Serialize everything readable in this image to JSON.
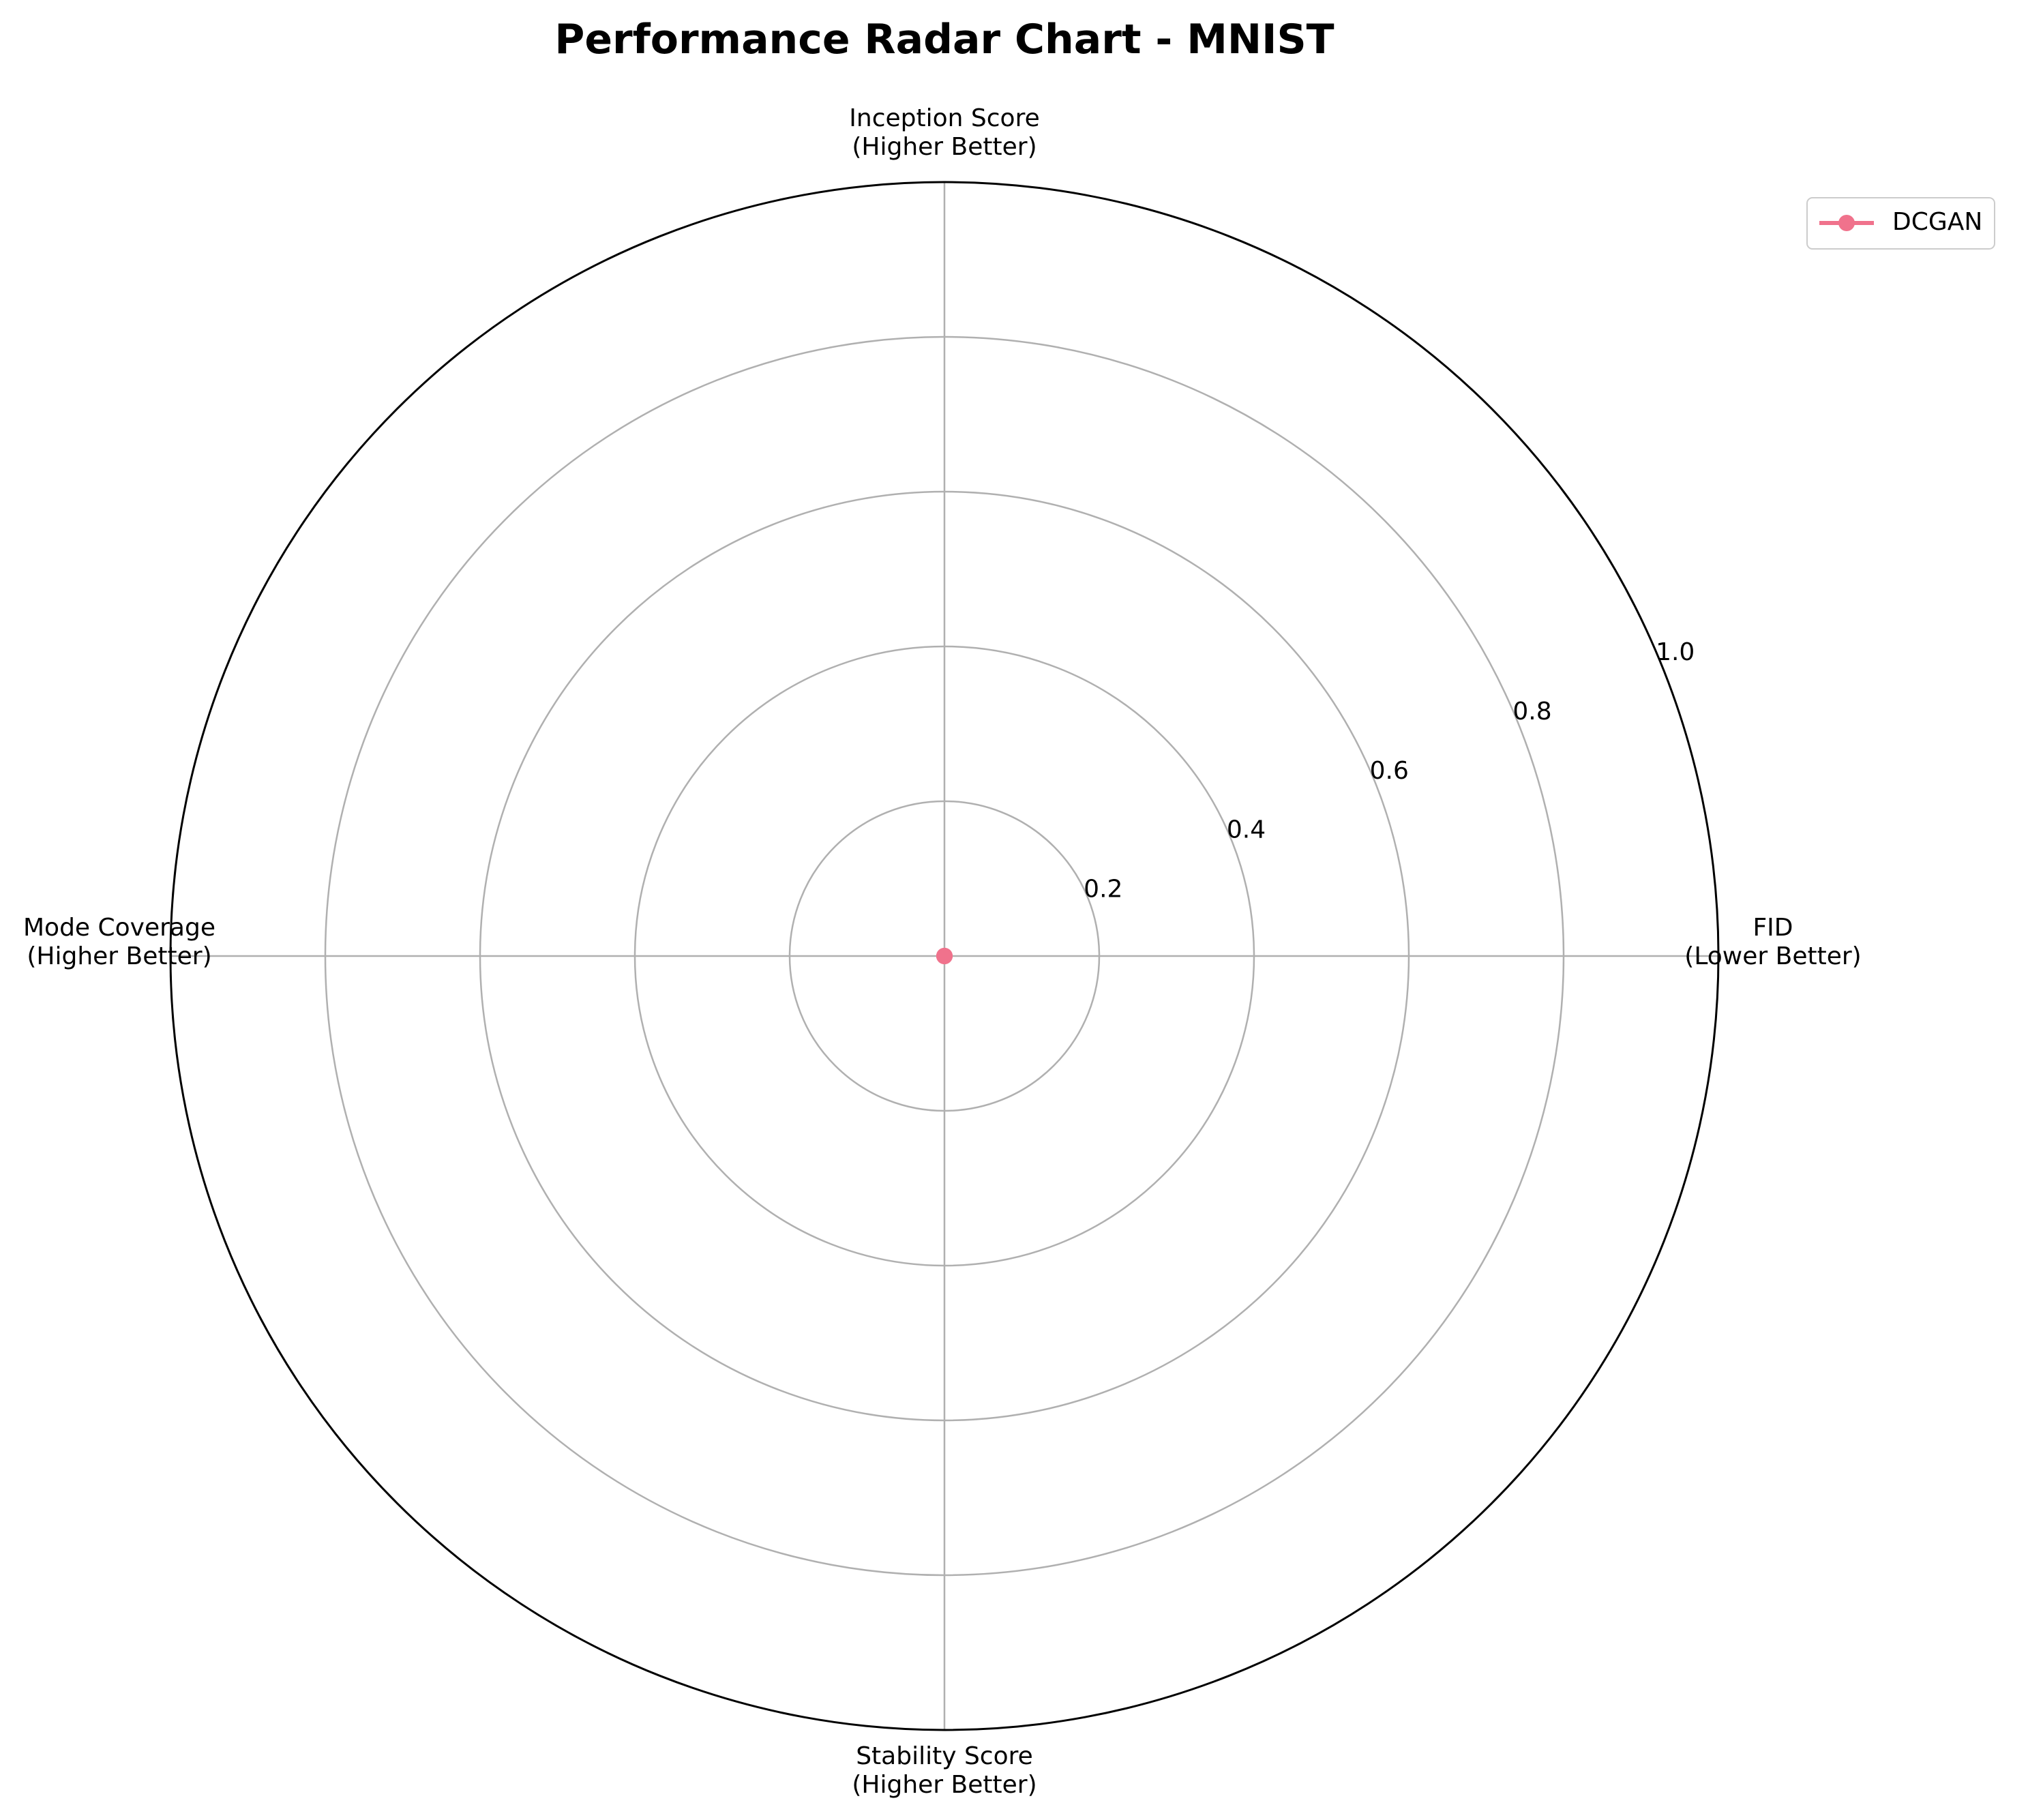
{
  "chart_data": {
    "type": "radar",
    "title": "Performance Radar Chart - MNIST",
    "axes": [
      {
        "name": "FID",
        "note": "(Lower Better)"
      },
      {
        "name": "Inception Score",
        "note": "(Higher Better)"
      },
      {
        "name": "Mode Coverage",
        "note": "(Higher Better)"
      },
      {
        "name": "Stability Score",
        "note": "(Higher Better)"
      }
    ],
    "r_ticks": [
      "0.2",
      "0.4",
      "0.6",
      "0.8",
      "1.0"
    ],
    "r_range": [
      0,
      1.0
    ],
    "grid": true,
    "legend_position": "top-right",
    "series": [
      {
        "name": "DCGAN",
        "values": [
          0,
          0,
          0,
          0
        ],
        "color": "#f0728c"
      }
    ]
  }
}
